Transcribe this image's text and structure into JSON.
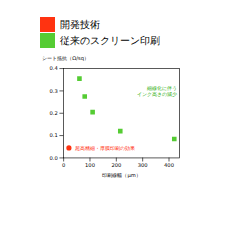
{
  "chart_data": {
    "type": "scatter",
    "xlabel": "印刷線幅（μm）",
    "ylabel": "シート抵抗（Ω/sq）",
    "xlim": [
      0,
      440
    ],
    "ylim": [
      0,
      0.4
    ],
    "xticks": [
      0,
      100,
      200,
      300,
      400
    ],
    "yticks": [
      {
        "value": 0.0,
        "label": "0.0"
      },
      0.1,
      0.2,
      0.3,
      0.4
    ],
    "series": [
      {
        "name": "開発技術",
        "color": "#ff3311",
        "marker": "circle",
        "x": [
          20
        ],
        "values": [
          0.045
        ]
      },
      {
        "name": "従来のスクリーン印刷",
        "color": "#55cc33",
        "marker": "square",
        "x": [
          60,
          80,
          110,
          215,
          420
        ],
        "values": [
          0.355,
          0.275,
          0.205,
          0.12,
          0.085
        ]
      }
    ],
    "annotations": [
      {
        "text": "細線化に伴う\nインク高さの減少",
        "color": "#22aa00"
      },
      {
        "text": "超高精細・厚膜印刷の効果",
        "color": "#ff2200"
      }
    ],
    "legend": "top"
  }
}
